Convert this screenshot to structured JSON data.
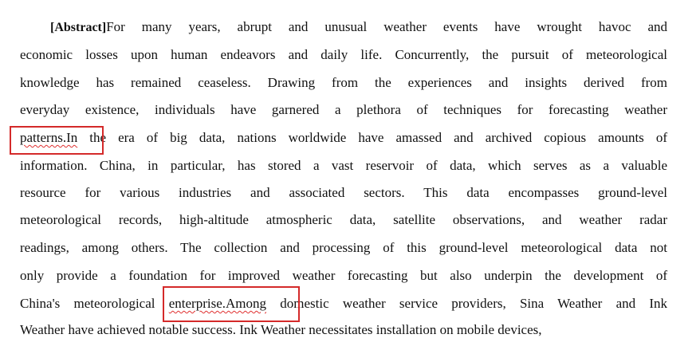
{
  "document": {
    "abstract_label": "[Abstract]",
    "lines": [
      "For many years, abrupt and unusual weather events have wrought havoc and",
      "economic losses upon human endeavors and daily life. Concurrently, the pursuit of meteorological",
      "knowledge has remained ceaseless. Drawing from the experiences and insights derived from",
      "everyday existence, individuals have garnered a plethora of techniques for forecasting weather",
      {
        "pre": "",
        "flagged": "patterns.In",
        "post": " the era of big data, nations worldwide have amassed and archived copious amounts of"
      },
      "information. China, in particular, has stored a vast reservoir of data, which serves as a valuable",
      "resource for various industries and associated sectors. This data encompasses ground-level",
      "meteorological records, high-altitude atmospheric data, satellite observations, and weather radar",
      "readings, among others. The collection and processing of this ground-level meteorological data not",
      "only provide a foundation for improved weather forecasting but also underpin the development of",
      {
        "pre": "China's meteorological ",
        "flagged": "enterprise.Among",
        "post": " domestic weather service providers, Sina Weather and Ink"
      },
      "Weather have achieved notable success. Ink Weather necessitates installation on mobile devices,"
    ]
  },
  "annotations": {
    "box_color": "#d42a2a",
    "spellcheck_color": "#e03030"
  }
}
